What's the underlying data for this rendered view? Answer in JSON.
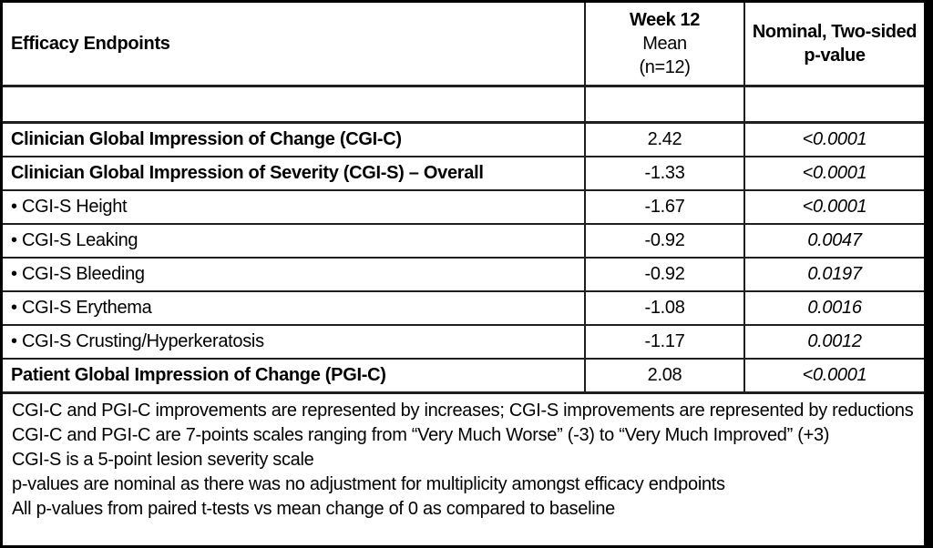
{
  "table": {
    "header": {
      "endpoints": "Efficacy Endpoints",
      "mean_line1": "Week 12",
      "mean_line2": "Mean",
      "mean_line3": "(n=12)",
      "pvalue_line1": "Nominal, Two-sided",
      "pvalue_line2": "p-value"
    },
    "rows": [
      {
        "endpoint": "Clinician Global Impression of Change (CGI-C)",
        "mean": "2.42",
        "p_value": "<0.0001"
      },
      {
        "endpoint": "Clinician Global Impression of Severity (CGI-S) – Overall",
        "mean": "-1.33",
        "p_value": "<0.0001"
      },
      {
        "endpoint": "• CGI-S Height",
        "mean": "-1.67",
        "p_value": "<0.0001"
      },
      {
        "endpoint": "• CGI-S Leaking",
        "mean": "-0.92",
        "p_value": "0.0047"
      },
      {
        "endpoint": "• CGI-S Bleeding",
        "mean": "-0.92",
        "p_value": "0.0197"
      },
      {
        "endpoint": "• CGI-S Erythema",
        "mean": "-1.08",
        "p_value": "0.0016"
      },
      {
        "endpoint": "• CGI-S Crusting/Hyperkeratosis",
        "mean": "-1.17",
        "p_value": "0.0012"
      },
      {
        "endpoint": "Patient Global Impression of Change (PGI-C)",
        "mean": "2.08",
        "p_value": "<0.0001"
      }
    ],
    "footnotes": [
      "CGI-C and PGI-C improvements are represented by increases; CGI-S improvements are represented by reductions",
      "CGI-C and PGI-C are 7-points scales ranging from “Very Much Worse” (-3) to “Very Much Improved” (+3)",
      "CGI-S is a 5-point lesion severity scale",
      "p-values are nominal as there was no adjustment for multiplicity amongst efficacy endpoints",
      "All p-values from paired t-tests vs mean change of 0 as compared to baseline"
    ]
  },
  "colors": {
    "page_background": "#000000",
    "table_background": "#ffffff",
    "border": "#000000",
    "text": "#000000"
  }
}
